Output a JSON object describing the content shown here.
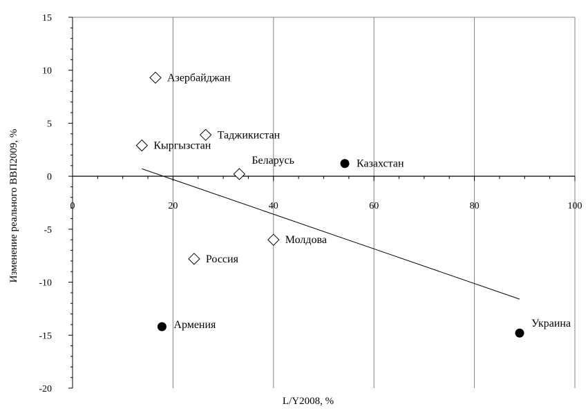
{
  "chart_data": {
    "type": "scatter",
    "xlabel": "L/Y2008, %",
    "ylabel": "Изменение реального ВВП2009, %",
    "xlim": [
      0,
      100
    ],
    "ylim": [
      -20,
      15
    ],
    "x_ticks": [
      "0",
      "20",
      "40",
      "60",
      "80",
      "100"
    ],
    "y_ticks": [
      "15",
      "10",
      "5",
      "0",
      "-5",
      "-10",
      "-15",
      "-20"
    ],
    "grid": true,
    "points": [
      {
        "label": "Азербайджан",
        "x": 16.5,
        "y": 9.3,
        "marker": "diamond-open"
      },
      {
        "label": "Таджикистан",
        "x": 26.5,
        "y": 3.9,
        "marker": "diamond-open"
      },
      {
        "label": "Кыргызстан",
        "x": 13.8,
        "y": 2.9,
        "marker": "diamond-open"
      },
      {
        "label": "Беларусь",
        "x": 33.2,
        "y": 0.2,
        "marker": "diamond-open"
      },
      {
        "label": "Казахстан",
        "x": 54.2,
        "y": 1.2,
        "marker": "circle-filled"
      },
      {
        "label": "Молдова",
        "x": 40.0,
        "y": -6.0,
        "marker": "diamond-open"
      },
      {
        "label": "Россия",
        "x": 24.2,
        "y": -7.8,
        "marker": "diamond-open"
      },
      {
        "label": "Армения",
        "x": 17.8,
        "y": -14.2,
        "marker": "circle-filled"
      },
      {
        "label": "Украина",
        "x": 89.0,
        "y": -14.8,
        "marker": "circle-filled"
      }
    ],
    "trendline": {
      "x": [
        13.8,
        89.0
      ],
      "y": [
        0.7,
        -11.6
      ]
    }
  }
}
